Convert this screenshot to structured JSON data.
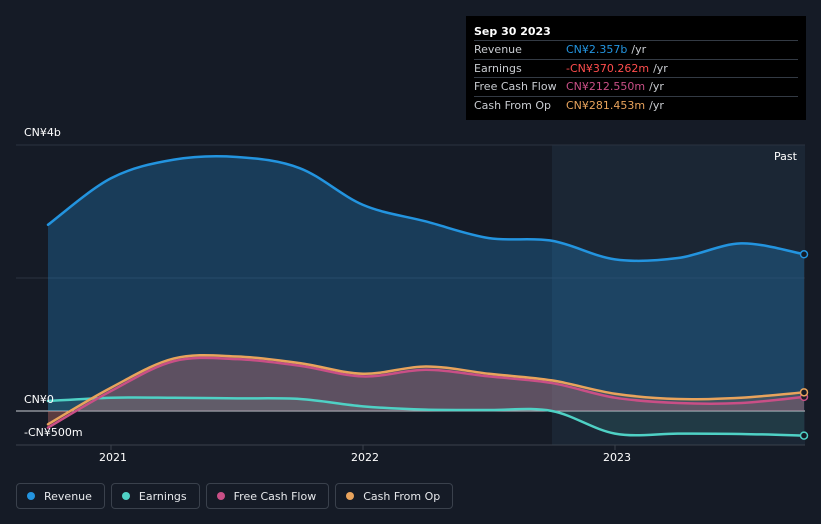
{
  "tooltip": {
    "date": "Sep 30 2023",
    "rows": [
      {
        "label": "Revenue",
        "value": "CN¥2.357b",
        "unit": "/yr",
        "color": "#2394df"
      },
      {
        "label": "Earnings",
        "value": "-CN¥370.262m",
        "unit": "/yr",
        "color": "#ff4d4d"
      },
      {
        "label": "Free Cash Flow",
        "value": "CN¥212.550m",
        "unit": "/yr",
        "color": "#c94f86"
      },
      {
        "label": "Cash From Op",
        "value": "CN¥281.453m",
        "unit": "/yr",
        "color": "#e8a35c"
      }
    ]
  },
  "past_label": "Past",
  "legend": [
    {
      "label": "Revenue",
      "color": "#2394df"
    },
    {
      "label": "Earnings",
      "color": "#4fd1c5"
    },
    {
      "label": "Free Cash Flow",
      "color": "#c94f86"
    },
    {
      "label": "Cash From Op",
      "color": "#e8a35c"
    }
  ],
  "chart_data": {
    "type": "area",
    "y_tick_labels": [
      "CN¥4b",
      "CN¥0",
      "-CN¥500m"
    ],
    "x_tick_labels": [
      "2021",
      "2022",
      "2023"
    ],
    "ylim": [
      -500,
      4000
    ],
    "y_unit": "CN¥m",
    "x_domain": [
      2020.75,
      2023.75
    ],
    "x_ticks": [
      2021,
      2022,
      2023
    ],
    "forecast_start": 2022.75,
    "grid": true,
    "series": [
      {
        "name": "Revenue",
        "color": "#2394df",
        "x": [
          2020.75,
          2021.0,
          2021.25,
          2021.5,
          2021.75,
          2022.0,
          2022.25,
          2022.5,
          2022.75,
          2023.0,
          2023.25,
          2023.5,
          2023.75
        ],
        "values": [
          2800,
          3500,
          3780,
          3820,
          3650,
          3100,
          2850,
          2600,
          2560,
          2280,
          2300,
          2520,
          2357
        ]
      },
      {
        "name": "Earnings",
        "color": "#4fd1c5",
        "x": [
          2020.75,
          2021.0,
          2021.25,
          2021.5,
          2021.75,
          2022.0,
          2022.25,
          2022.5,
          2022.75,
          2023.0,
          2023.25,
          2023.5,
          2023.75
        ],
        "values": [
          150,
          200,
          200,
          190,
          180,
          70,
          20,
          15,
          0,
          -340,
          -340,
          -345,
          -370
        ]
      },
      {
        "name": "Free Cash Flow",
        "color": "#c94f86",
        "x": [
          2020.75,
          2021.0,
          2021.25,
          2021.5,
          2021.75,
          2022.0,
          2022.25,
          2022.5,
          2022.75,
          2023.0,
          2023.25,
          2023.5,
          2023.75
        ],
        "values": [
          -250,
          300,
          750,
          780,
          680,
          520,
          620,
          520,
          420,
          200,
          120,
          120,
          212
        ]
      },
      {
        "name": "Cash From Op",
        "color": "#e8a35c",
        "x": [
          2020.75,
          2021.0,
          2021.25,
          2021.5,
          2021.75,
          2022.0,
          2022.25,
          2022.5,
          2022.75,
          2023.0,
          2023.25,
          2023.5,
          2023.75
        ],
        "values": [
          -200,
          350,
          790,
          820,
          720,
          560,
          670,
          560,
          460,
          260,
          180,
          200,
          281
        ]
      }
    ]
  }
}
